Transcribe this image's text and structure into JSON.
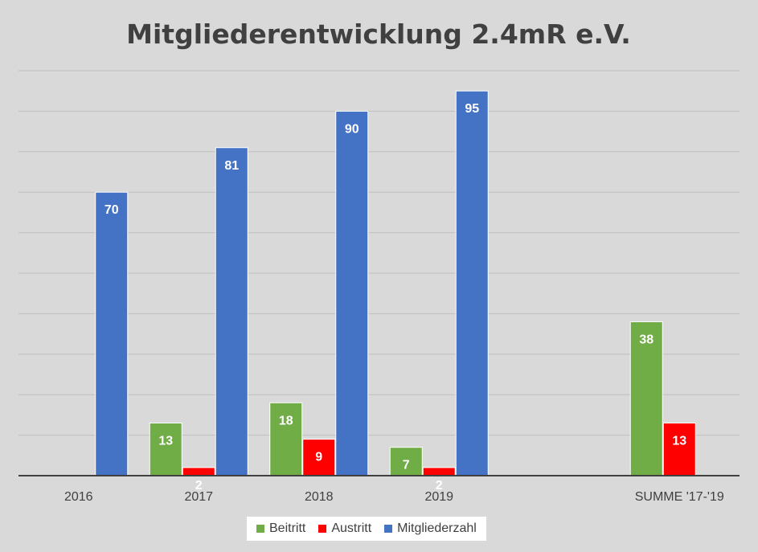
{
  "chart_data": {
    "type": "bar",
    "title": "Mitgliederentwicklung 2.4mR e.V.",
    "categories": [
      "2016",
      "2017",
      "2018",
      "2019",
      "",
      "SUMME '17-'19"
    ],
    "series": [
      {
        "name": "Beitritt",
        "color": "#70ad47",
        "values": [
          null,
          13,
          18,
          7,
          null,
          38
        ]
      },
      {
        "name": "Austritt",
        "color": "#ff0000",
        "values": [
          null,
          2,
          9,
          2,
          null,
          13
        ]
      },
      {
        "name": "Mitgliederzahl",
        "color": "#4472c4",
        "values": [
          70,
          81,
          90,
          95,
          null,
          null
        ]
      }
    ],
    "ylim": [
      0,
      100
    ],
    "grid": true,
    "y_ticks_shown": false,
    "legend_position": "bottom"
  }
}
